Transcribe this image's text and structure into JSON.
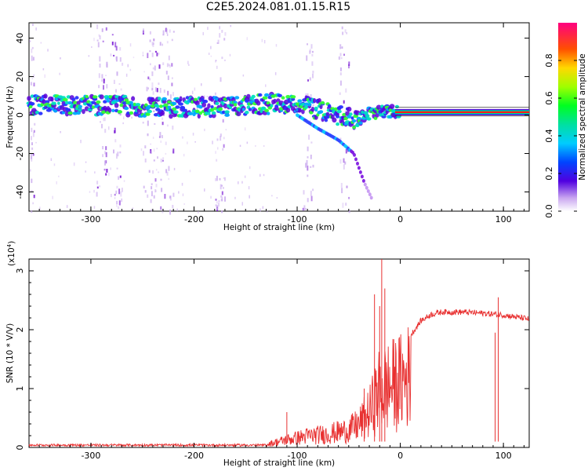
{
  "title": "C2E5.2024.081.01.15.R15",
  "colors": {
    "snr_line": "#e83030",
    "blob_dark": "#6a00d0",
    "blob_light": "#c8a8ee",
    "fill": "#ffffff",
    "frame": "#000000"
  },
  "chart_data": [
    {
      "type": "heatmap",
      "name": "spectrogram",
      "xlabel": "Height of straight line (km)",
      "ylabel": "Frequency (Hz)",
      "xlim": [
        -360,
        125
      ],
      "ylim": [
        -50,
        48
      ],
      "xticks": [
        -300,
        -200,
        -100,
        0,
        100
      ],
      "xtick_labels": [
        "-300",
        "-200",
        "-100",
        "0",
        "100"
      ],
      "yticks": [
        -40,
        -20,
        0,
        20,
        40
      ],
      "ytick_labels": [
        "-40",
        "-20",
        "0",
        "20",
        "40"
      ],
      "ridge": [
        {
          "x": -360,
          "y": 5
        },
        {
          "x": -300,
          "y": 5
        },
        {
          "x": -200,
          "y": 4
        },
        {
          "x": -150,
          "y": 5
        },
        {
          "x": -120,
          "y": 6
        },
        {
          "x": -100,
          "y": 5
        },
        {
          "x": -80,
          "y": 3
        },
        {
          "x": -60,
          "y": 0
        },
        {
          "x": -40,
          "y": -2
        },
        {
          "x": -30,
          "y": 1
        },
        {
          "x": -10,
          "y": 2
        },
        {
          "x": 0,
          "y": 2
        },
        {
          "x": 125,
          "y": 1
        }
      ],
      "branch": [
        {
          "x": -100,
          "y": 0
        },
        {
          "x": -80,
          "y": -7
        },
        {
          "x": -60,
          "y": -13
        },
        {
          "x": -45,
          "y": -20
        },
        {
          "x": -35,
          "y": -35
        },
        {
          "x": -28,
          "y": -43
        }
      ],
      "stripes": [
        -360,
        -290,
        -275,
        -245,
        -235,
        -225,
        -175,
        -90,
        -55
      ],
      "colorbar": {
        "label": "Normalized spectral amplitude",
        "ticks": [
          0.0,
          0.2,
          0.4,
          0.6,
          0.8
        ],
        "tick_labels": [
          "0.0",
          "0.2",
          "0.4",
          "0.6",
          "0.8"
        ],
        "range": [
          0,
          1
        ]
      }
    },
    {
      "type": "line",
      "name": "snr",
      "xlabel": "Height of straight line (km)",
      "ylabel": "SNR (10 * V/V)",
      "multiplier_label": "(x10",
      "multiplier_exp": "4",
      "multiplier_close": ")",
      "xlim": [
        -360,
        125
      ],
      "ylim": [
        0,
        3.2
      ],
      "xticks": [
        -300,
        -200,
        -100,
        0,
        100
      ],
      "xtick_labels": [
        "-300",
        "-200",
        "-100",
        "0",
        "100"
      ],
      "yticks": [
        0,
        1,
        2,
        3
      ],
      "ytick_labels": [
        "0",
        "1",
        "2",
        "3"
      ],
      "envelope": [
        {
          "x": -360,
          "y": 0.04
        },
        {
          "x": -300,
          "y": 0.04
        },
        {
          "x": -200,
          "y": 0.03
        },
        {
          "x": -150,
          "y": 0.05
        },
        {
          "x": -130,
          "y": 0.08
        },
        {
          "x": -110,
          "y": 0.2
        },
        {
          "x": -90,
          "y": 0.3
        },
        {
          "x": -70,
          "y": 0.35
        },
        {
          "x": -50,
          "y": 0.45
        },
        {
          "x": -40,
          "y": 0.6
        },
        {
          "x": -30,
          "y": 0.9
        },
        {
          "x": -20,
          "y": 1.5
        },
        {
          "x": -10,
          "y": 1.6
        },
        {
          "x": 0,
          "y": 1.7
        },
        {
          "x": 10,
          "y": 1.9
        },
        {
          "x": 20,
          "y": 2.15
        },
        {
          "x": 30,
          "y": 2.26
        },
        {
          "x": 40,
          "y": 2.3
        },
        {
          "x": 60,
          "y": 2.3
        },
        {
          "x": 80,
          "y": 2.28
        },
        {
          "x": 100,
          "y": 2.25
        },
        {
          "x": 125,
          "y": 2.18
        }
      ],
      "spikes": [
        {
          "x": -110,
          "y": 0.6
        },
        {
          "x": -35,
          "y": 1.0
        },
        {
          "x": -25,
          "y": 2.6
        },
        {
          "x": -20,
          "y": 2.4
        },
        {
          "x": -18,
          "y": 3.2
        },
        {
          "x": -15,
          "y": 2.7
        },
        {
          "x": 95,
          "y": 2.55
        },
        {
          "x": 92,
          "y": 1.95
        }
      ]
    }
  ]
}
